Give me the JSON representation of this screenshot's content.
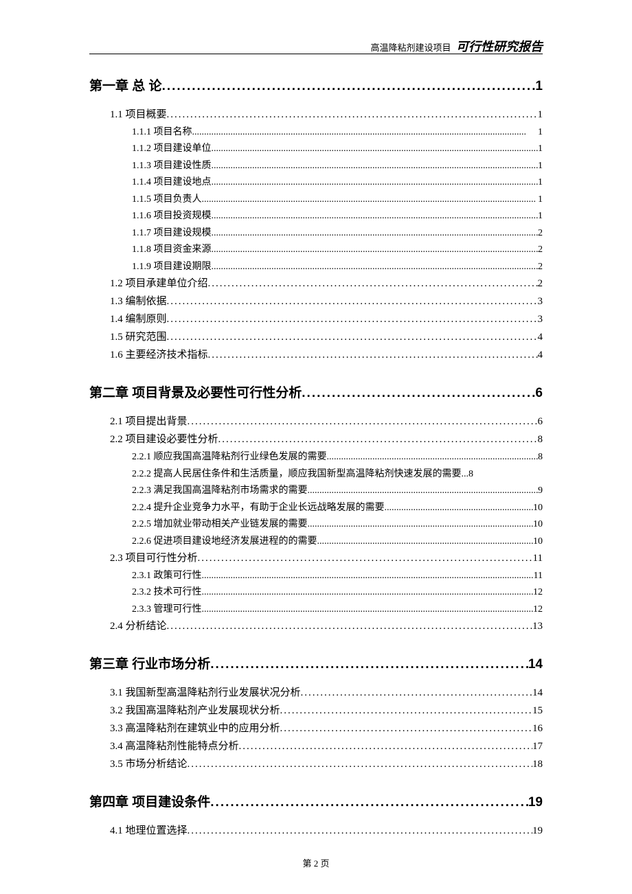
{
  "header": {
    "project": "高温降粘剂建设项目",
    "report": "可行性研究报告"
  },
  "footer": {
    "text": "第 2 页"
  },
  "toc": [
    {
      "level": 1,
      "label": "第一章 总 论",
      "page": "1"
    },
    {
      "level": 2,
      "label": "1.1 项目概要",
      "page": "1"
    },
    {
      "level": 3,
      "label": "1.1.1 项目名称",
      "page": "1"
    },
    {
      "level": 3,
      "label": "1.1.2 项目建设单位",
      "page": "1"
    },
    {
      "level": 3,
      "label": "1.1.3 项目建设性质",
      "page": "1"
    },
    {
      "level": 3,
      "label": "1.1.4 项目建设地点",
      "page": "1"
    },
    {
      "level": 3,
      "label": "1.1.5 项目负责人",
      "page": "1"
    },
    {
      "level": 3,
      "label": "1.1.6 项目投资规模",
      "page": "1"
    },
    {
      "level": 3,
      "label": "1.1.7 项目建设规模",
      "page": "2"
    },
    {
      "level": 3,
      "label": "1.1.8 项目资金来源",
      "page": "2"
    },
    {
      "level": 3,
      "label": "1.1.9 项目建设期限",
      "page": "2"
    },
    {
      "level": 2,
      "label": "1.2 项目承建单位介绍",
      "page": "2"
    },
    {
      "level": 2,
      "label": "1.3 编制依据",
      "page": "3"
    },
    {
      "level": 2,
      "label": "1.4 编制原则",
      "page": "3"
    },
    {
      "level": 2,
      "label": "1.5 研究范围",
      "page": "4"
    },
    {
      "level": 2,
      "label": "1.6 主要经济技术指标",
      "page": "4"
    },
    {
      "level": 1,
      "label": "第二章 项目背景及必要性可行性分析",
      "page": "6"
    },
    {
      "level": 2,
      "label": "2.1 项目提出背景",
      "page": "6"
    },
    {
      "level": 2,
      "label": "2.2 项目建设必要性分析",
      "page": "8"
    },
    {
      "level": 3,
      "label": "2.2.1 顺应我国高温降粘剂行业绿色发展的需要",
      "page": "8"
    },
    {
      "level": 3,
      "label": "2.2.2 提高人民居住条件和生活质量，顺应我国新型高温降粘剂快速发展的需要",
      "page": "8",
      "nodots": true
    },
    {
      "level": 3,
      "label": "2.2.3 满足我国高温降粘剂市场需求的需要",
      "page": "9"
    },
    {
      "level": 3,
      "label": "2.2.4 提升企业竞争力水平，有助于企业长远战略发展的需要",
      "page": "10"
    },
    {
      "level": 3,
      "label": "2.2.5 增加就业带动相关产业链发展的需要",
      "page": "10"
    },
    {
      "level": 3,
      "label": "2.2.6 促进项目建设地经济发展进程的的需要",
      "page": "10"
    },
    {
      "level": 2,
      "label": "2.3 项目可行性分析",
      "page": "11"
    },
    {
      "level": 3,
      "label": "2.3.1 政策可行性",
      "page": "11"
    },
    {
      "level": 3,
      "label": "2.3.2 技术可行性",
      "page": "12"
    },
    {
      "level": 3,
      "label": "2.3.3 管理可行性",
      "page": "12"
    },
    {
      "level": 2,
      "label": "2.4 分析结论",
      "page": "13"
    },
    {
      "level": 1,
      "label": "第三章 行业市场分析",
      "page": "14"
    },
    {
      "level": 2,
      "label": "3.1 我国新型高温降粘剂行业发展状况分析",
      "page": "14"
    },
    {
      "level": 2,
      "label": "3.2 我国高温降粘剂产业发展现状分析",
      "page": "15"
    },
    {
      "level": 2,
      "label": "3.3 高温降粘剂在建筑业中的应用分析",
      "page": "16"
    },
    {
      "level": 2,
      "label": "3.4 高温降粘剂性能特点分析",
      "page": "17"
    },
    {
      "level": 2,
      "label": "3.5 市场分析结论",
      "page": "18"
    },
    {
      "level": 1,
      "label": "第四章 项目建设条件",
      "page": "19"
    },
    {
      "level": 2,
      "label": "4.1 地理位置选择",
      "page": "19"
    }
  ]
}
